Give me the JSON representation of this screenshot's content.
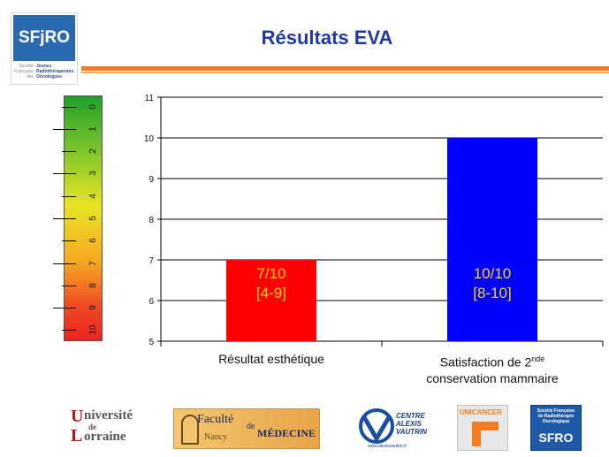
{
  "header": {
    "title": "Résultats EVA",
    "logo": {
      "word": "SFjRO",
      "left_lines": [
        "Société",
        "Française",
        "des"
      ],
      "right_lines": [
        "Jeunes",
        "Radiothérapeutes",
        "Oncologues"
      ]
    }
  },
  "scale": {
    "labels": [
      "0",
      "1",
      "2",
      "3",
      "4",
      "5",
      "6",
      "7",
      "8",
      "9",
      "10"
    ],
    "gradient_colors": [
      "#1fa12a",
      "#e9e523",
      "#ec2222"
    ]
  },
  "chart_data": {
    "type": "bar",
    "categories": [
      "Résultat esthétique",
      "Satisfaction de 2nde conservation mammaire"
    ],
    "category_lines": [
      [
        "Résultat esthétique"
      ],
      [
        "Satisfaction de 2",
        "conservation mammaire"
      ]
    ],
    "superscript": "nde",
    "values": [
      7,
      10
    ],
    "bar_labels": [
      [
        "7/10",
        "[4-9]"
      ],
      [
        "10/10",
        "[8-10]"
      ]
    ],
    "bar_colors": [
      "#ff0000",
      "#0000ff"
    ],
    "bar_label_colors": [
      "#ffd700",
      "#ffd700"
    ],
    "ylim": [
      5,
      11
    ],
    "yticks": [
      "5",
      "6",
      "7",
      "8",
      "9",
      "10",
      "11"
    ],
    "grid": true,
    "title": "",
    "xlabel": "",
    "ylabel": ""
  },
  "footer": {
    "univ": {
      "line1": "niversité",
      "first": "U",
      "de": "de",
      "line2a": "L",
      "line2b": "orraine"
    },
    "med": {
      "faculte": "Faculté",
      "de": "de",
      "medecine": "MÉDECINE",
      "city": "Nancy"
    },
    "cav": {
      "l1": "CENTRE",
      "l2": "ALEXIS",
      "l3": "VAUTRIN",
      "url": "www.alexisvautrin.fr"
    },
    "unicancer": "UNICANCER",
    "sfro": {
      "small": [
        "Société Française",
        "de Radiothérapie",
        "Oncologique"
      ],
      "word": "SFRO"
    }
  }
}
